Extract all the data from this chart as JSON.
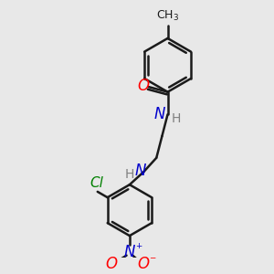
{
  "background_color": "#e8e8e8",
  "bond_color": "#1a1a1a",
  "bond_width": 1.8,
  "figsize": [
    3.0,
    3.0
  ],
  "dpi": 100,
  "colors": {
    "O": "#ff0000",
    "N": "#0000cc",
    "Cl": "#008000",
    "H": "#808080",
    "C": "#1a1a1a",
    "Onitro": "#ff0000"
  }
}
